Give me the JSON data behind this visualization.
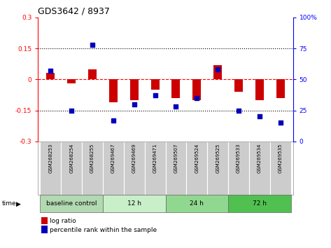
{
  "title": "GDS3642 / 8937",
  "samples": [
    "GSM268253",
    "GSM268254",
    "GSM268255",
    "GSM269467",
    "GSM269469",
    "GSM269471",
    "GSM269507",
    "GSM269524",
    "GSM269525",
    "GSM269533",
    "GSM269534",
    "GSM269535"
  ],
  "log_ratio": [
    0.03,
    -0.02,
    0.05,
    -0.11,
    -0.1,
    -0.05,
    -0.09,
    -0.1,
    0.07,
    -0.06,
    -0.1,
    -0.09
  ],
  "percentile_rank": [
    57,
    25,
    78,
    17,
    30,
    37,
    28,
    35,
    58,
    25,
    20,
    15
  ],
  "groups": [
    {
      "label": "baseline control",
      "start": 0,
      "end": 3,
      "color": "#b2d9b2"
    },
    {
      "label": "12 h",
      "start": 3,
      "end": 6,
      "color": "#c8efc8"
    },
    {
      "label": "24 h",
      "start": 6,
      "end": 9,
      "color": "#90d890"
    },
    {
      "label": "72 h",
      "start": 9,
      "end": 12,
      "color": "#50c050"
    }
  ],
  "ylim_left": [
    -0.3,
    0.3
  ],
  "ylim_right": [
    0,
    100
  ],
  "yticks_left": [
    -0.3,
    -0.15,
    0.0,
    0.15,
    0.3
  ],
  "yticks_right": [
    0,
    25,
    50,
    75,
    100
  ],
  "bar_width": 0.4,
  "log_ratio_color": "#CC0000",
  "percentile_color": "#0000BB",
  "label_bg_color": "#cccccc"
}
